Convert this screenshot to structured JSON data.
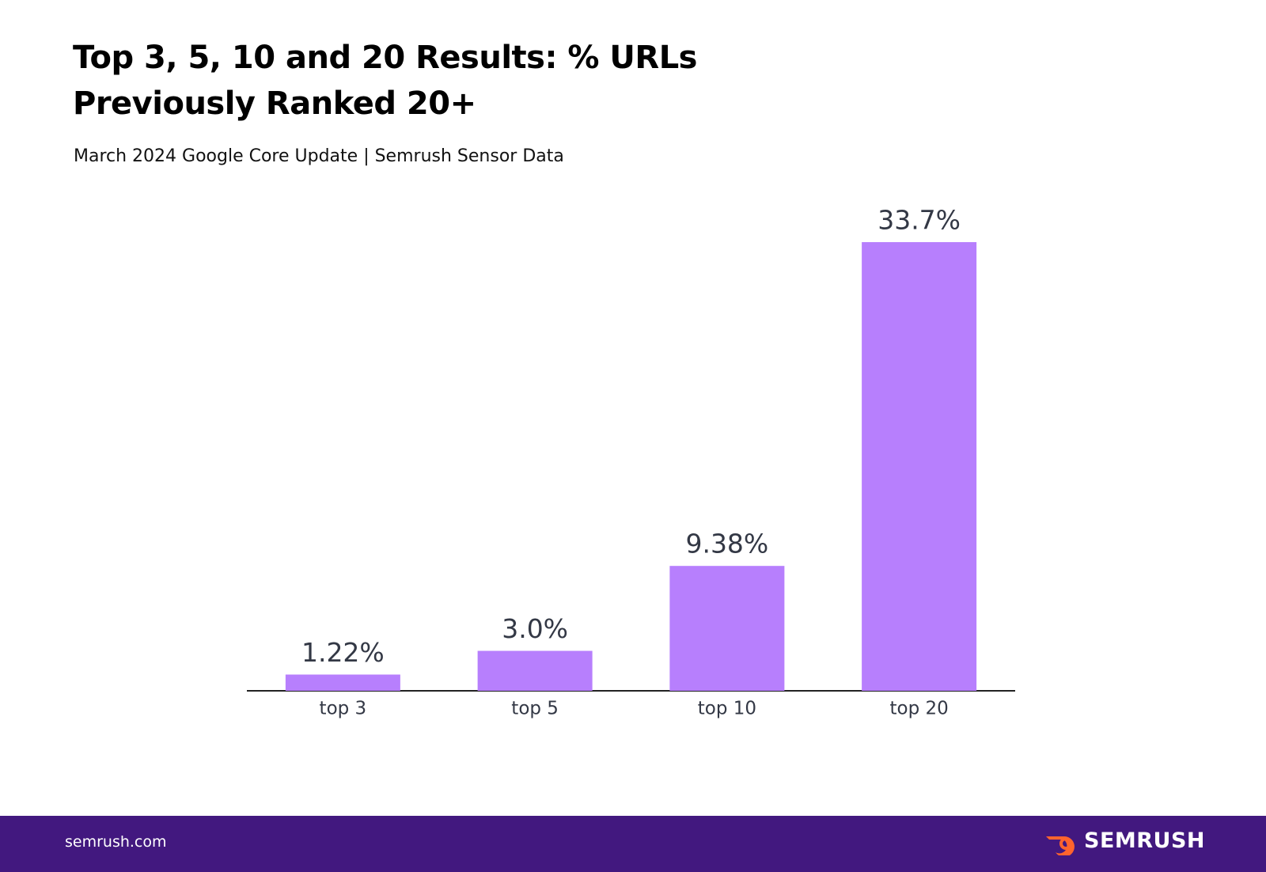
{
  "chart_data": {
    "type": "bar",
    "title": "Top 3, 5, 10 and 20 Results: % URLs Previously Ranked 20+",
    "subtitle": "March 2024 Google Core Update | Semrush Sensor Data",
    "categories": [
      "top 3",
      "top 5",
      "top 10",
      "top 20"
    ],
    "values": [
      1.22,
      3.0,
      9.38,
      33.7
    ],
    "value_labels": [
      "1.22%",
      "3.0%",
      "9.38%",
      "33.7%"
    ],
    "color": "#b77ffd"
  },
  "footer": {
    "site": "semrush.com",
    "brand": "SEMRUSH"
  }
}
